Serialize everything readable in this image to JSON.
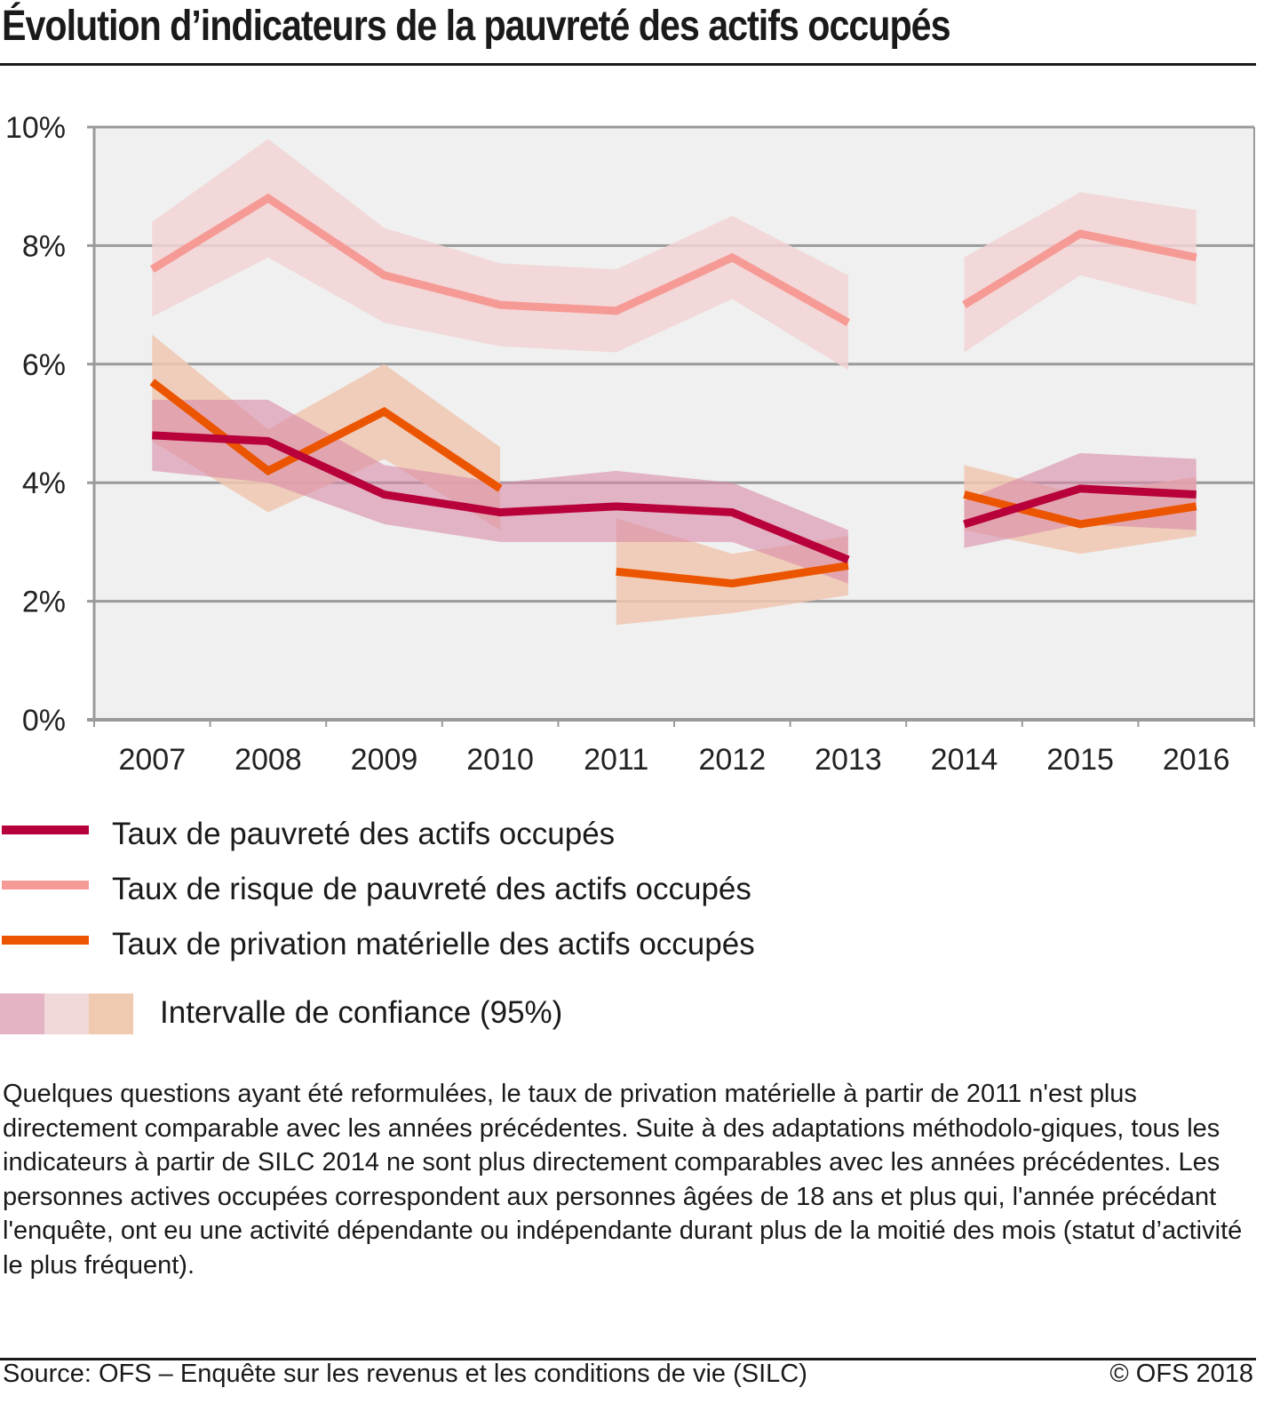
{
  "title": "Évolution d’indicateurs de la pauvreté des actifs occupés",
  "chart_data": {
    "type": "line",
    "title": "Évolution d’indicateurs de la pauvreté des actifs occupés",
    "xlabel": "",
    "ylabel": "",
    "x": [
      "2007",
      "2008",
      "2009",
      "2010",
      "2011",
      "2012",
      "2013",
      "2014",
      "2015",
      "2016"
    ],
    "ylim": [
      0,
      10
    ],
    "yticks": [
      0,
      2,
      4,
      6,
      8,
      10
    ],
    "ytick_labels": [
      "0%",
      "2%",
      "4%",
      "6%",
      "8%",
      "10%"
    ],
    "grid": true,
    "legend_position": "bottom",
    "series": [
      {
        "name": "Taux de risque de pauvreté des actifs occupés",
        "color": "#f69a95",
        "ci_color": "#f2d3d3",
        "segments": [
          {
            "x": [
              "2007",
              "2008",
              "2009",
              "2010",
              "2011",
              "2012",
              "2013"
            ],
            "values": [
              7.6,
              8.8,
              7.5,
              7.0,
              6.9,
              7.8,
              6.7
            ],
            "ci_low": [
              6.8,
              7.8,
              6.7,
              6.3,
              6.2,
              7.1,
              5.9
            ],
            "ci_high": [
              8.4,
              9.8,
              8.3,
              7.7,
              7.6,
              8.5,
              7.5
            ]
          },
          {
            "x": [
              "2014",
              "2015",
              "2016"
            ],
            "values": [
              7.0,
              8.2,
              7.8
            ],
            "ci_low": [
              6.2,
              7.5,
              7.0
            ],
            "ci_high": [
              7.8,
              8.9,
              8.6
            ]
          }
        ]
      },
      {
        "name": "Taux de privation matérielle des actifs occupés",
        "color": "#ec5500",
        "ci_color": "#f0c7b0",
        "segments": [
          {
            "x": [
              "2007",
              "2008",
              "2009",
              "2010"
            ],
            "values": [
              5.7,
              4.2,
              5.2,
              3.9
            ],
            "ci_low": [
              4.7,
              3.5,
              4.4,
              3.2
            ],
            "ci_high": [
              6.5,
              4.9,
              6.0,
              4.6
            ]
          },
          {
            "x": [
              "2011",
              "2012",
              "2013"
            ],
            "values": [
              2.5,
              2.3,
              2.6
            ],
            "ci_low": [
              1.6,
              1.8,
              2.1
            ],
            "ci_high": [
              3.4,
              2.8,
              3.1
            ]
          },
          {
            "x": [
              "2014",
              "2015",
              "2016"
            ],
            "values": [
              3.8,
              3.3,
              3.6
            ],
            "ci_low": [
              3.2,
              2.8,
              3.1
            ],
            "ci_high": [
              4.3,
              3.8,
              4.1
            ]
          }
        ]
      },
      {
        "name": "Taux de pauvreté des actifs occupés",
        "color": "#b8003a",
        "ci_color": "#d88aa8",
        "segments": [
          {
            "x": [
              "2007",
              "2008",
              "2009",
              "2010",
              "2011",
              "2012",
              "2013"
            ],
            "values": [
              4.8,
              4.7,
              3.8,
              3.5,
              3.6,
              3.5,
              2.7
            ],
            "ci_low": [
              4.2,
              4.0,
              3.3,
              3.0,
              3.0,
              3.0,
              2.3
            ],
            "ci_high": [
              5.4,
              5.4,
              4.3,
              4.0,
              4.2,
              4.0,
              3.2
            ]
          },
          {
            "x": [
              "2014",
              "2015",
              "2016"
            ],
            "values": [
              3.3,
              3.9,
              3.8
            ],
            "ci_low": [
              2.9,
              3.3,
              3.2
            ],
            "ci_high": [
              3.7,
              4.5,
              4.4
            ]
          }
        ]
      }
    ]
  },
  "legend": {
    "items": [
      {
        "label": "Taux de pauvreté des actifs occupés",
        "color": "#b8003a"
      },
      {
        "label": "Taux de risque de pauvreté des actifs occupés",
        "color": "#f69a95"
      },
      {
        "label": "Taux de privation matérielle des actifs occupés",
        "color": "#ec5500"
      }
    ],
    "ci_label": "Intervalle de confiance (95%)",
    "ci_colors": [
      "#e4b4c4",
      "#f2d9d9",
      "#f0c9b1"
    ]
  },
  "note": "Quelques questions ayant été reformulées, le taux de privation matérielle à partir de 2011 n'est plus directement comparable avec les années précédentes. Suite à des adaptations méthodolo-giques, tous les indicateurs à partir de SILC 2014 ne sont plus directement comparables avec les années précédentes. Les personnes actives occupées correspondent aux personnes âgées de 18 ans et plus qui, l'année précédant l'enquête, ont eu une activité dépendante ou indépendante durant plus de la moitié des mois (statut d’activité le plus fréquent).",
  "source": "Source: OFS – Enquête sur les revenus et les conditions de vie (SILC)",
  "copyright": "© OFS 2018"
}
